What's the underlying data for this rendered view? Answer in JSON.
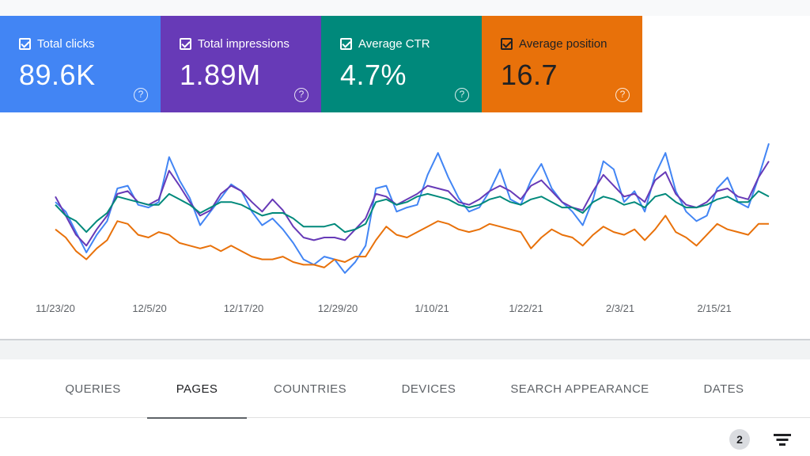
{
  "metrics": {
    "clicks": {
      "label": "Total clicks",
      "value": "89.6K",
      "color": "#4285f4"
    },
    "impressions": {
      "label": "Total impressions",
      "value": "1.89M",
      "color": "#673ab7"
    },
    "ctr": {
      "label": "Average CTR",
      "value": "4.7%",
      "color": "#00897b"
    },
    "position": {
      "label": "Average position",
      "value": "16.7",
      "color": "#e8710a"
    }
  },
  "chart_data": {
    "type": "line",
    "x_ticks": [
      "11/23/20",
      "12/5/20",
      "12/17/20",
      "12/29/20",
      "1/10/21",
      "1/22/21",
      "2/3/21",
      "2/15/21"
    ],
    "y_axis": "hidden (normalized series)",
    "series": [
      {
        "color": "#4285f4",
        "values": [
          0.62,
          0.55,
          0.4,
          0.25,
          0.38,
          0.48,
          0.72,
          0.74,
          0.6,
          0.58,
          0.62,
          0.95,
          0.78,
          0.65,
          0.45,
          0.55,
          0.65,
          0.75,
          0.7,
          0.55,
          0.45,
          0.5,
          0.42,
          0.32,
          0.2,
          0.16,
          0.22,
          0.2,
          0.1,
          0.18,
          0.3,
          0.72,
          0.74,
          0.55,
          0.58,
          0.6,
          0.82,
          0.98,
          0.8,
          0.65,
          0.55,
          0.58,
          0.7,
          0.86,
          0.64,
          0.6,
          0.78,
          0.9,
          0.72,
          0.62,
          0.55,
          0.45,
          0.64,
          0.92,
          0.86,
          0.62,
          0.7,
          0.55,
          0.82,
          0.98,
          0.7,
          0.55,
          0.48,
          0.52,
          0.72,
          0.8,
          0.62,
          0.58,
          0.8,
          1.05
        ]
      },
      {
        "color": "#673ab7",
        "values": [
          0.66,
          0.52,
          0.38,
          0.3,
          0.42,
          0.52,
          0.68,
          0.7,
          0.62,
          0.6,
          0.64,
          0.85,
          0.74,
          0.62,
          0.52,
          0.56,
          0.68,
          0.74,
          0.7,
          0.62,
          0.55,
          0.64,
          0.56,
          0.44,
          0.36,
          0.34,
          0.36,
          0.36,
          0.34,
          0.42,
          0.5,
          0.68,
          0.66,
          0.6,
          0.64,
          0.68,
          0.74,
          0.72,
          0.7,
          0.62,
          0.6,
          0.64,
          0.7,
          0.74,
          0.7,
          0.64,
          0.74,
          0.78,
          0.7,
          0.62,
          0.58,
          0.56,
          0.7,
          0.82,
          0.74,
          0.66,
          0.68,
          0.62,
          0.78,
          0.84,
          0.68,
          0.6,
          0.58,
          0.62,
          0.7,
          0.72,
          0.66,
          0.64,
          0.8,
          0.92
        ]
      },
      {
        "color": "#00897b",
        "values": [
          0.6,
          0.52,
          0.48,
          0.4,
          0.48,
          0.54,
          0.66,
          0.64,
          0.62,
          0.6,
          0.6,
          0.68,
          0.64,
          0.6,
          0.54,
          0.58,
          0.62,
          0.62,
          0.6,
          0.56,
          0.52,
          0.54,
          0.54,
          0.5,
          0.44,
          0.44,
          0.44,
          0.46,
          0.4,
          0.42,
          0.46,
          0.62,
          0.64,
          0.6,
          0.62,
          0.66,
          0.68,
          0.66,
          0.64,
          0.6,
          0.58,
          0.6,
          0.64,
          0.66,
          0.62,
          0.6,
          0.64,
          0.66,
          0.62,
          0.58,
          0.58,
          0.54,
          0.62,
          0.66,
          0.64,
          0.6,
          0.62,
          0.58,
          0.66,
          0.68,
          0.62,
          0.58,
          0.58,
          0.6,
          0.64,
          0.66,
          0.62,
          0.62,
          0.7,
          0.66
        ]
      },
      {
        "color": "#e8710a",
        "values": [
          0.42,
          0.36,
          0.26,
          0.2,
          0.28,
          0.34,
          0.48,
          0.46,
          0.38,
          0.36,
          0.4,
          0.38,
          0.32,
          0.3,
          0.28,
          0.3,
          0.26,
          0.3,
          0.26,
          0.22,
          0.2,
          0.2,
          0.22,
          0.18,
          0.16,
          0.16,
          0.14,
          0.2,
          0.18,
          0.22,
          0.22,
          0.34,
          0.44,
          0.38,
          0.36,
          0.4,
          0.44,
          0.48,
          0.46,
          0.42,
          0.4,
          0.42,
          0.46,
          0.44,
          0.42,
          0.4,
          0.28,
          0.36,
          0.42,
          0.38,
          0.36,
          0.3,
          0.38,
          0.44,
          0.4,
          0.38,
          0.42,
          0.34,
          0.42,
          0.52,
          0.4,
          0.36,
          0.3,
          0.38,
          0.46,
          0.42,
          0.4,
          0.38,
          0.46,
          0.46
        ]
      }
    ]
  },
  "tabs": [
    "QUERIES",
    "PAGES",
    "COUNTRIES",
    "DEVICES",
    "SEARCH APPEARANCE",
    "DATES"
  ],
  "active_tab": "PAGES",
  "filter_count": "2"
}
